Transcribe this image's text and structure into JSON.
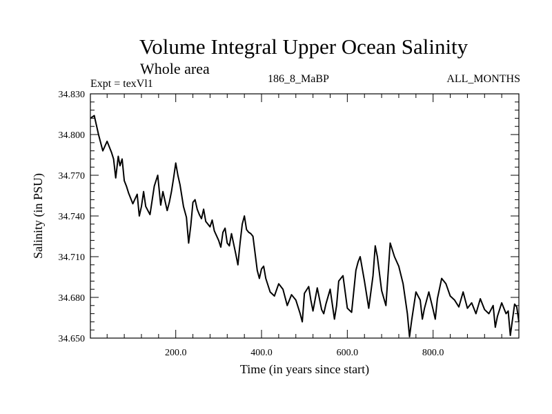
{
  "chart_data": {
    "type": "line",
    "title": "Volume Integral Upper Ocean Salinity",
    "subtitle": "Whole area",
    "experiment_label": "Expt = texVl1",
    "run_label": "186_8_MaBP",
    "period_label": "ALL_MONTHS",
    "xlabel": "Time (in years since start)",
    "ylabel": "Salinity (in PSU)",
    "xlim": [
      1,
      1000
    ],
    "ylim": [
      34.65,
      34.83
    ],
    "x_ticks": [
      200,
      400,
      600,
      800
    ],
    "x_tick_labels": [
      "200.0",
      "400.0",
      "600.0",
      "800.0"
    ],
    "y_ticks": [
      34.65,
      34.68,
      34.71,
      34.74,
      34.77,
      34.8,
      34.83
    ],
    "y_tick_labels": [
      "34.650",
      "34.680",
      "34.710",
      "34.740",
      "34.770",
      "34.800",
      "34.830"
    ],
    "line_color": "#000000",
    "series": [
      {
        "name": "salinity",
        "x": [
          1,
          10,
          20,
          30,
          40,
          50,
          55,
          60,
          66,
          70,
          75,
          80,
          85,
          90,
          100,
          110,
          115,
          120,
          125,
          130,
          140,
          150,
          158,
          165,
          170,
          180,
          185,
          190,
          195,
          200,
          205,
          210,
          218,
          225,
          230,
          235,
          240,
          245,
          250,
          255,
          260,
          265,
          270,
          280,
          285,
          290,
          300,
          305,
          310,
          315,
          320,
          325,
          330,
          340,
          345,
          350,
          355,
          360,
          365,
          370,
          375,
          380,
          390,
          395,
          400,
          405,
          410,
          420,
          430,
          440,
          450,
          460,
          470,
          480,
          490,
          495,
          500,
          510,
          515,
          520,
          530,
          540,
          545,
          550,
          560,
          570,
          575,
          580,
          590,
          600,
          610,
          620,
          625,
          630,
          640,
          650,
          660,
          665,
          670,
          680,
          690,
          700,
          710,
          720,
          730,
          740,
          745,
          750,
          760,
          770,
          775,
          780,
          790,
          800,
          805,
          810,
          820,
          830,
          840,
          850,
          860,
          870,
          880,
          890,
          900,
          910,
          920,
          930,
          940,
          945,
          950,
          960,
          970,
          975,
          980,
          990,
          995,
          1000
        ],
        "values": [
          34.812,
          34.814,
          34.8,
          34.788,
          34.795,
          34.787,
          34.782,
          34.768,
          34.784,
          34.777,
          34.782,
          34.766,
          34.762,
          34.757,
          34.749,
          34.756,
          34.74,
          34.747,
          34.758,
          34.747,
          34.741,
          34.762,
          34.77,
          34.748,
          34.758,
          34.744,
          34.75,
          34.758,
          34.768,
          34.779,
          34.77,
          34.763,
          34.747,
          34.739,
          34.72,
          34.733,
          34.75,
          34.752,
          34.745,
          34.741,
          34.738,
          34.745,
          34.736,
          34.732,
          34.737,
          34.729,
          34.722,
          34.717,
          34.728,
          34.731,
          34.72,
          34.718,
          34.727,
          34.712,
          34.704,
          34.72,
          34.734,
          34.74,
          34.73,
          34.728,
          34.727,
          34.725,
          34.7,
          34.694,
          34.701,
          34.703,
          34.694,
          34.684,
          34.681,
          34.69,
          34.686,
          34.674,
          34.682,
          34.678,
          34.668,
          34.662,
          34.683,
          34.688,
          34.678,
          34.67,
          34.687,
          34.671,
          34.668,
          34.675,
          34.686,
          34.664,
          34.674,
          34.692,
          34.696,
          34.672,
          34.669,
          34.7,
          34.706,
          34.71,
          34.692,
          34.672,
          34.696,
          34.718,
          34.71,
          34.685,
          34.674,
          34.72,
          34.71,
          34.703,
          34.69,
          34.668,
          34.651,
          34.663,
          34.684,
          34.678,
          34.664,
          34.672,
          34.684,
          34.671,
          34.664,
          34.679,
          34.694,
          34.69,
          34.681,
          34.678,
          34.673,
          34.684,
          34.672,
          34.676,
          34.668,
          34.679,
          34.671,
          34.668,
          34.674,
          34.658,
          34.666,
          34.676,
          34.668,
          34.67,
          34.652,
          34.675,
          34.673,
          34.662
        ]
      }
    ]
  }
}
